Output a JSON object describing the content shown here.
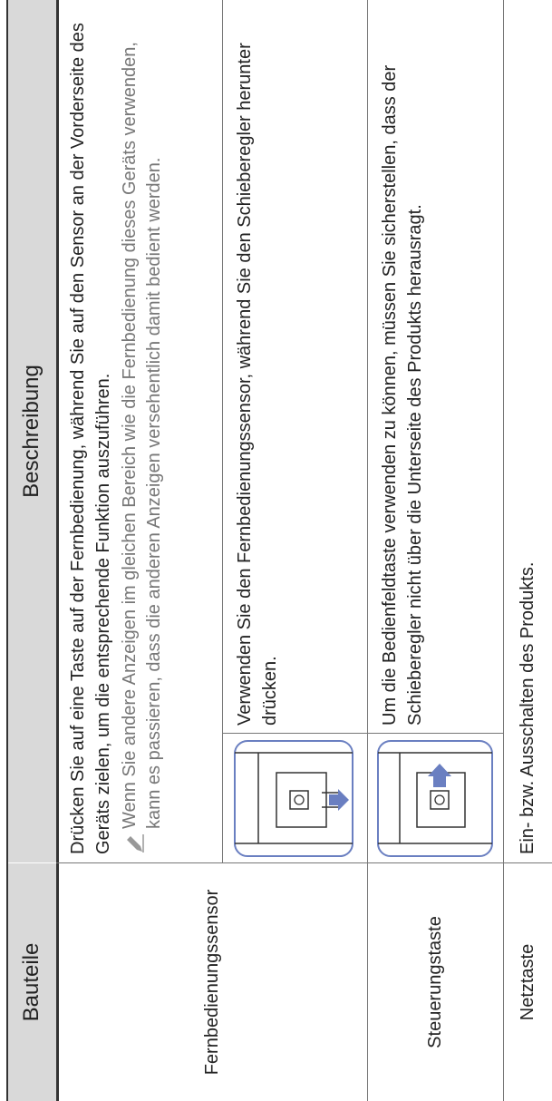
{
  "table": {
    "header": [
      "Bauteile",
      "Beschreibung"
    ],
    "rows": [
      {
        "part": "Fernbedienungssensor",
        "description": "Drücken Sie auf eine Taste auf der Fernbedienung, während Sie auf den Sensor an der Vorderseite des Geräts zielen, um die entsprechende Funktion auszuführen.",
        "note": "Wenn Sie andere Anzeigen im gleichen Bereich wie die Fernbedienung dieses Geräts verwenden, kann es passieren, dass die anderen Anzeigen versehentlich damit bedient werden.",
        "usage": "Verwenden Sie den Fernbedienungssensor, während Sie den Schieberegler herunter drücken."
      },
      {
        "part": "Steuerungstaste",
        "description": "Um die Bedienfeldtaste verwenden zu können, müssen Sie sicherstellen, dass der Schieberegler nicht über die Unterseite des Produkts herausragt."
      },
      {
        "part": "Netztaste",
        "description": "Ein- bzw. Ausschalten des Produkts."
      }
    ]
  }
}
